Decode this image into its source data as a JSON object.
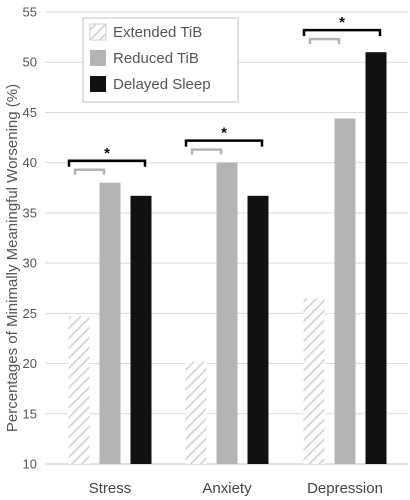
{
  "chart_data": {
    "type": "bar",
    "title": "",
    "xlabel": "",
    "ylabel": "Percentages of Minimally Meaningful Worsening (%)",
    "ylim": [
      10,
      55
    ],
    "yticks": [
      10,
      15,
      20,
      25,
      30,
      35,
      40,
      45,
      50,
      55
    ],
    "grid": true,
    "legend_position": "top-left",
    "categories": [
      "Stress",
      "Anxiety",
      "Depression"
    ],
    "series": [
      {
        "name": "Extended TiB",
        "values": [
          24.7,
          20.2,
          26.5
        ],
        "pattern": "hatched",
        "color": "#d9d9d9"
      },
      {
        "name": "Reduced TiB",
        "values": [
          38.0,
          40.0,
          44.4
        ],
        "pattern": "solid",
        "color": "#b4b4b4"
      },
      {
        "name": "Delayed Sleep",
        "values": [
          36.7,
          36.7,
          51.0
        ],
        "pattern": "solid",
        "color": "#111111"
      }
    ],
    "annotations": [
      {
        "category": "Stress",
        "text": "*"
      },
      {
        "category": "Anxiety",
        "text": "*"
      },
      {
        "category": "Depression",
        "text": "*"
      }
    ]
  }
}
